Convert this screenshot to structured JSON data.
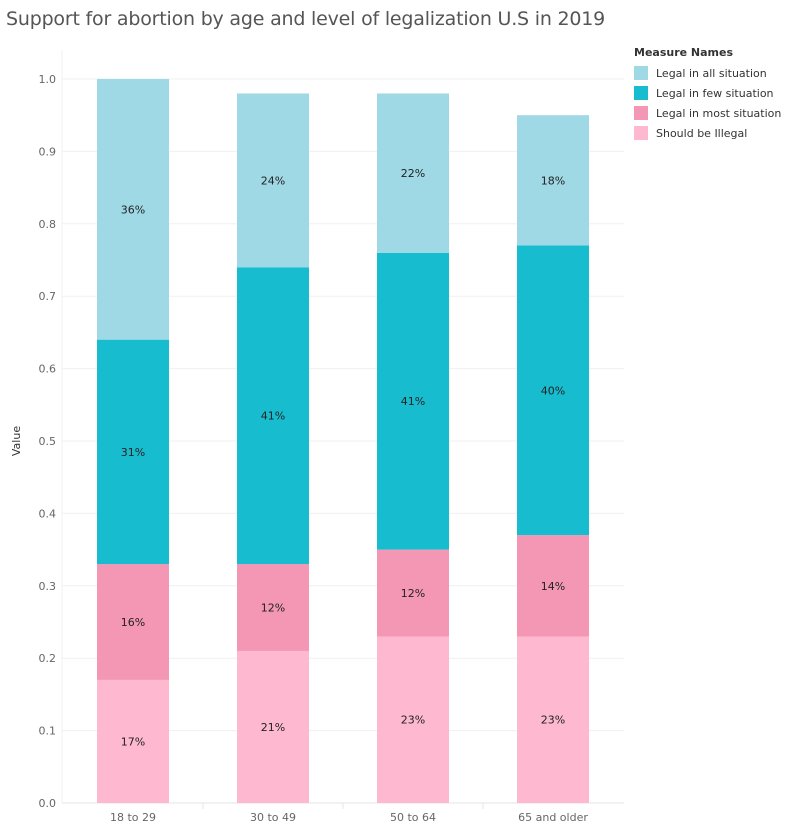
{
  "chart_data": {
    "type": "bar",
    "stacked": true,
    "title": "Support for abortion by age and level of legalization U.S in 2019",
    "xlabel": "",
    "ylabel": "Value",
    "ylim": [
      0,
      1.0
    ],
    "yticks": [
      "0.0",
      "0.1",
      "0.2",
      "0.3",
      "0.4",
      "0.5",
      "0.6",
      "0.7",
      "0.8",
      "0.9",
      "1.0"
    ],
    "categories": [
      "18 to 29",
      "30 to 49",
      "50 to 64",
      "65 and older"
    ],
    "legend_title": "Measure Names",
    "legend_position": "top-right",
    "series": [
      {
        "name": "Should be Illegal",
        "color": "#FEB9D1",
        "values": [
          0.17,
          0.21,
          0.23,
          0.23
        ],
        "labels": [
          "17%",
          "21%",
          "23%",
          "23%"
        ]
      },
      {
        "name": "Legal in most situation",
        "color": "#F497B4",
        "values": [
          0.16,
          0.12,
          0.12,
          0.14
        ],
        "labels": [
          "16%",
          "12%",
          "12%",
          "14%"
        ]
      },
      {
        "name": "Legal in few situation",
        "color": "#17BCCF",
        "values": [
          0.31,
          0.41,
          0.41,
          0.4
        ],
        "labels": [
          "31%",
          "41%",
          "41%",
          "40%"
        ]
      },
      {
        "name": "Legal in all situation",
        "color": "#9FD9E5",
        "values": [
          0.36,
          0.24,
          0.22,
          0.18
        ],
        "labels": [
          "36%",
          "24%",
          "22%",
          "18%"
        ]
      }
    ],
    "legend_order": [
      "Legal in all situation",
      "Legal in few situation",
      "Legal in most situation",
      "Should be Illegal"
    ]
  }
}
